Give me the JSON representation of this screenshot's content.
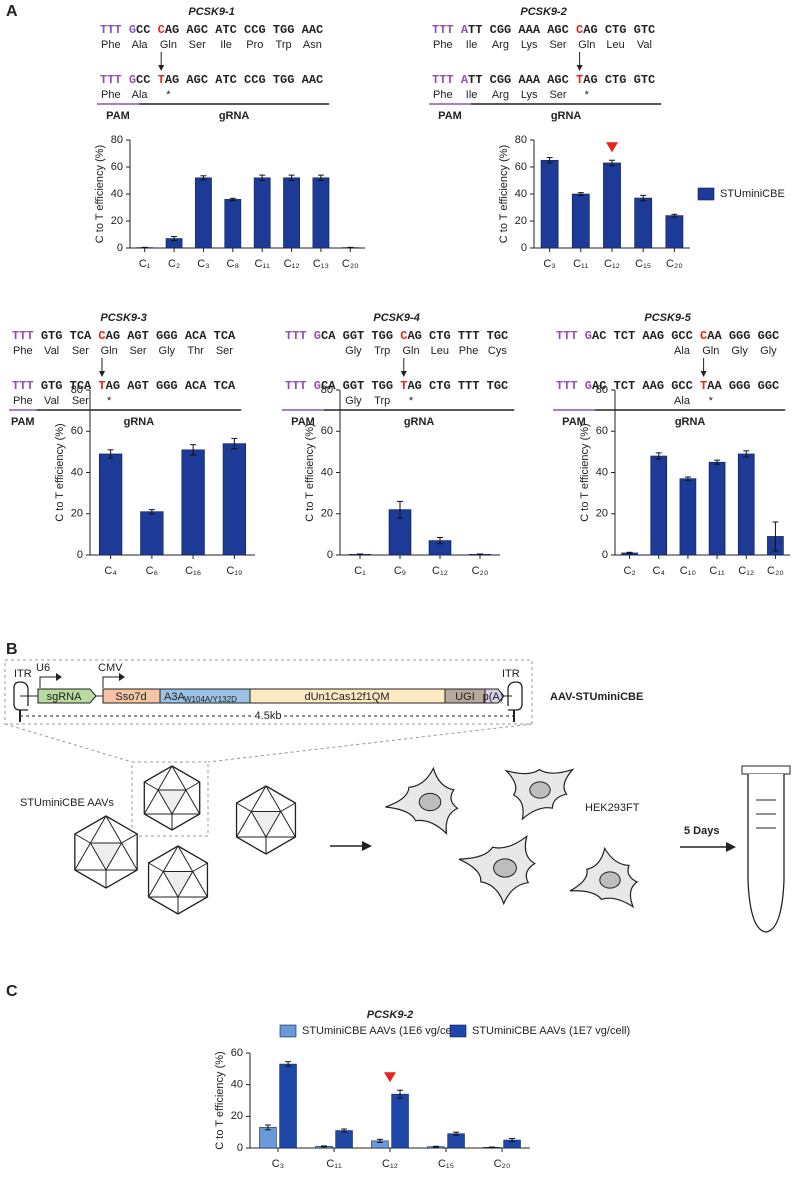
{
  "panels": [
    "A",
    "B",
    "C"
  ],
  "sequences": [
    {
      "title": "PCSK9-1",
      "pam": "PAM",
      "grna": "gRNA",
      "pam_color": "#8e52b2",
      "top": {
        "segments": [
          "TTT ",
          "G",
          "CC ",
          "C",
          "AG AGC ATC CCG TGG AAC"
        ],
        "colors": [
          "#8e52b2",
          "#8e52b2",
          "#222222",
          "#e3251f",
          "#222222"
        ],
        "aa": [
          "Phe",
          "Ala",
          "Gln",
          "Ser",
          "Ile",
          "Pro",
          "Trp",
          "Asn"
        ],
        "aa_colors": [
          "#2f7fc1",
          "#2f7fc1",
          "#2f7fc1",
          "#2f7fc1",
          "#2f7fc1",
          "#2f7fc1",
          "#2f7fc1",
          "#2f7fc1"
        ]
      },
      "bottom": {
        "segments": [
          "TTT ",
          "G",
          "CC ",
          "T",
          "AG AGC ATC CCG TGG AAC"
        ],
        "colors": [
          "#8e52b2",
          "#8e52b2",
          "#222222",
          "#e3251f",
          "#222222"
        ],
        "aa": [
          "Phe",
          "Ala",
          "*"
        ],
        "aa_colors": [
          "#2f7fc1",
          "#2f7fc1",
          "#e3251f"
        ]
      }
    },
    {
      "title": "PCSK9-2",
      "pam": "PAM",
      "grna": "gRNA",
      "pam_color": "#8e52b2",
      "top": {
        "segments": [
          "TTT ",
          "A",
          "TT CGG AAA AGC ",
          "C",
          "AG CTG GTC"
        ],
        "colors": [
          "#8e52b2",
          "#8e52b2",
          "#222222",
          "#e3251f",
          "#222222"
        ],
        "aa": [
          "Phe",
          "Ile",
          "Arg",
          "Lys",
          "Ser",
          "Gln",
          "Leu",
          "Val"
        ],
        "aa_colors": [
          "#2f7fc1",
          "#2f7fc1",
          "#2f7fc1",
          "#2f7fc1",
          "#2f7fc1",
          "#2f7fc1",
          "#2f7fc1",
          "#2f7fc1"
        ]
      },
      "bottom": {
        "segments": [
          "TTT ",
          "A",
          "TT CGG AAA AGC ",
          "T",
          "AG CTG GTC"
        ],
        "colors": [
          "#8e52b2",
          "#8e52b2",
          "#222222",
          "#e3251f",
          "#222222"
        ],
        "aa": [
          "Phe",
          "Ile",
          "Arg",
          "Lys",
          "Ser",
          "*"
        ],
        "aa_colors": [
          "#2f7fc1",
          "#2f7fc1",
          "#2f7fc1",
          "#2f7fc1",
          "#2f7fc1",
          "#e3251f"
        ]
      }
    },
    {
      "title": "PCSK9-3",
      "pam": "PAM",
      "grna": "gRNA",
      "pam_color": "#8e52b2",
      "top": {
        "segments": [
          "TTT ",
          "GTG TCA ",
          "C",
          "AG AGT GGG ACA TCA"
        ],
        "colors": [
          "#8e52b2",
          "#222222",
          "#e3251f",
          "#222222"
        ],
        "aa": [
          "Phe",
          "Val",
          "Ser",
          "Gln",
          "Ser",
          "Gly",
          "Thr",
          "Ser"
        ],
        "aa_colors": [
          "#2f7fc1",
          "#2f7fc1",
          "#2f7fc1",
          "#2f7fc1",
          "#2f7fc1",
          "#2f7fc1",
          "#2f7fc1",
          "#2f7fc1"
        ]
      },
      "bottom": {
        "segments": [
          "TTT ",
          "GTG TCA ",
          "T",
          "AG AGT GGG ACA TCA"
        ],
        "colors": [
          "#8e52b2",
          "#222222",
          "#e3251f",
          "#222222"
        ],
        "aa": [
          "Phe",
          "Val",
          "Ser",
          "*"
        ],
        "aa_colors": [
          "#2f7fc1",
          "#2f7fc1",
          "#2f7fc1",
          "#e3251f"
        ]
      }
    },
    {
      "title": "PCSK9-4",
      "pam": "PAM",
      "grna": "gRNA",
      "pam_color": "#8e52b2",
      "top": {
        "segments": [
          "TTT G",
          "CA GGT TGG ",
          "C",
          "AG CTG TTT TGC"
        ],
        "colors": [
          "#8e52b2",
          "#222222",
          "#e3251f",
          "#222222"
        ],
        "aa": [
          null,
          null,
          "Gly",
          "Trp",
          "Gln",
          "Leu",
          "Phe",
          "Cys"
        ],
        "aa_colors": [
          null,
          null,
          "#2f7fc1",
          "#2f7fc1",
          "#2f7fc1",
          "#2f7fc1",
          "#2f7fc1",
          "#2f7fc1"
        ]
      },
      "bottom": {
        "segments": [
          "TTT G",
          "CA GGT TGG ",
          "T",
          "AG CTG TTT TGC"
        ],
        "colors": [
          "#8e52b2",
          "#222222",
          "#e3251f",
          "#222222"
        ],
        "aa": [
          null,
          null,
          "Gly",
          "Trp",
          "*"
        ],
        "aa_colors": [
          null,
          null,
          "#2f7fc1",
          "#2f7fc1",
          "#e3251f"
        ]
      }
    },
    {
      "title": "PCSK9-5",
      "pam": "PAM",
      "grna": "gRNA",
      "pam_color": "#8e52b2",
      "top": {
        "segments": [
          "TTT G",
          "AC TCT AAG GCC ",
          "C",
          "AA GGG GGC"
        ],
        "colors": [
          "#8e52b2",
          "#222222",
          "#e3251f",
          "#222222"
        ],
        "aa": [
          null,
          null,
          null,
          null,
          "Ala",
          "Gln",
          "Gly",
          "Gly"
        ],
        "aa_colors": [
          null,
          null,
          null,
          null,
          "#2f7fc1",
          "#2f7fc1",
          "#2f7fc1",
          "#2f7fc1"
        ]
      },
      "bottom": {
        "segments": [
          "TTT G",
          "AC TCT AAG GCC ",
          "T",
          "AA GGG GGC"
        ],
        "colors": [
          "#8e52b2",
          "#222222",
          "#e3251f",
          "#222222"
        ],
        "aa": [
          null,
          null,
          null,
          null,
          "Ala",
          "*"
        ],
        "aa_colors": [
          null,
          null,
          null,
          null,
          "#2f7fc1",
          "#e3251f"
        ]
      }
    }
  ],
  "chart_data": [
    {
      "type": "bar",
      "y_label": "C to T efficiency (%)",
      "categories": [
        "C₁",
        "C₂",
        "C₃",
        "C₈",
        "C₁₁",
        "C₁₂",
        "C₁₃",
        "C₂₀"
      ],
      "category_colors": [
        "#222222",
        "#222222",
        "#e3251f",
        "#222222",
        "#222222",
        "#222222",
        "#222222",
        "#222222"
      ],
      "series": [
        {
          "color": "#1d3a96",
          "values": [
            0.3,
            7,
            52,
            36,
            52,
            52,
            52,
            0.3
          ],
          "errors": [
            0.2,
            1.5,
            1.5,
            0.8,
            2,
            2,
            2,
            0.2
          ]
        }
      ],
      "ylim": [
        0,
        80
      ],
      "yticks": [
        0,
        20,
        40,
        60,
        80
      ]
    },
    {
      "type": "bar",
      "y_label": "C to T efficiency (%)",
      "categories": [
        "C₃",
        "C₁₁",
        "C₁₂",
        "C₁₅",
        "C₂₀"
      ],
      "category_colors": [
        "#222222",
        "#222222",
        "#e3251f",
        "#222222",
        "#222222"
      ],
      "series": [
        {
          "name": "STUminiCBE",
          "color": "#1d3a96",
          "values": [
            65,
            40,
            63,
            37,
            24
          ],
          "errors": [
            2,
            1,
            2,
            2,
            1
          ]
        }
      ],
      "ylim": [
        0,
        80
      ],
      "yticks": [
        0,
        20,
        40,
        60,
        80
      ],
      "marker_at": "C₁₂",
      "marker_color": "#e3251f",
      "legend": "right"
    },
    {
      "type": "bar",
      "y_label": "C to T efficiency (%)",
      "categories": [
        "C₄",
        "C₆",
        "C₁₆",
        "C₁₉"
      ],
      "category_colors": [
        "#222222",
        "#e3251f",
        "#222222",
        "#222222"
      ],
      "series": [
        {
          "color": "#1d3a96",
          "values": [
            49,
            21,
            51,
            54
          ],
          "errors": [
            2,
            1,
            2.5,
            2.5
          ]
        }
      ],
      "ylim": [
        0,
        80
      ],
      "yticks": [
        0,
        20,
        40,
        60,
        80
      ]
    },
    {
      "type": "bar",
      "y_label": "C to T efficiency (%)",
      "categories": [
        "C₁",
        "C₉",
        "C₁₂",
        "C₂₀"
      ],
      "category_colors": [
        "#222222",
        "#e3251f",
        "#222222",
        "#222222"
      ],
      "series": [
        {
          "color": "#1d3a96",
          "values": [
            0.3,
            22,
            7,
            0.3
          ],
          "errors": [
            0.2,
            4,
            1.5,
            0.2
          ]
        }
      ],
      "ylim": [
        0,
        80
      ],
      "yticks": [
        0,
        20,
        40,
        60,
        80
      ]
    },
    {
      "type": "bar",
      "y_label": "C to T efficiency (%)",
      "categories": [
        "C₂",
        "C₄",
        "C₁₀",
        "C₁₁",
        "C₁₂",
        "C₂₀"
      ],
      "category_colors": [
        "#222222",
        "#222222",
        "#222222",
        "#222222",
        "#e3251f",
        "#222222"
      ],
      "series": [
        {
          "color": "#1d3a96",
          "values": [
            1,
            48,
            37,
            45,
            49,
            9
          ],
          "errors": [
            0.3,
            1.5,
            0.8,
            1,
            1.5,
            7
          ]
        }
      ],
      "ylim": [
        0,
        80
      ],
      "yticks": [
        0,
        20,
        40,
        60,
        80
      ]
    },
    {
      "type": "bar",
      "title": "PCSK9-2",
      "y_label": "C to T efficiency (%)",
      "categories": [
        "C₃",
        "C₁₁",
        "C₁₂",
        "C₁₅",
        "C₂₀"
      ],
      "category_colors": [
        "#222222",
        "#222222",
        "#e3251f",
        "#222222",
        "#222222"
      ],
      "series": [
        {
          "name": "STUminiCBE AAVs (1E6 vg/cell)",
          "color": "#6a9ad8",
          "values": [
            13,
            1,
            4.5,
            0.8,
            0.4
          ],
          "errors": [
            1.5,
            0.3,
            1,
            0.3,
            0.2
          ]
        },
        {
          "name": "STUminiCBE AAVs (1E7 vg/cell)",
          "color": "#1f47a8",
          "values": [
            53,
            11,
            34,
            9,
            5
          ],
          "errors": [
            1.5,
            1,
            2.5,
            1,
            1
          ]
        }
      ],
      "ylim": [
        0,
        60
      ],
      "yticks": [
        0,
        20,
        40,
        60
      ],
      "marker_at": "C₁₂",
      "marker_color": "#e3251f",
      "legend": "top"
    }
  ],
  "diagram": {
    "itr_left": "ITR",
    "u6": "U6",
    "cmv": "CMV",
    "sgrna": "sgRNA",
    "sso7d": "Sso7d",
    "a3a": "A3A",
    "a3a_mut": "W104A/Y132D",
    "cas": "dUn1Cas12f1QM",
    "ugi": "UGI",
    "pa": "p(A)",
    "itr_right": "ITR",
    "construct": "AAV-STUminiCBE",
    "size": "4.5kb",
    "aavs": "STUminiCBE AAVs",
    "cells": "HEK293FT",
    "time": "5 Days"
  }
}
